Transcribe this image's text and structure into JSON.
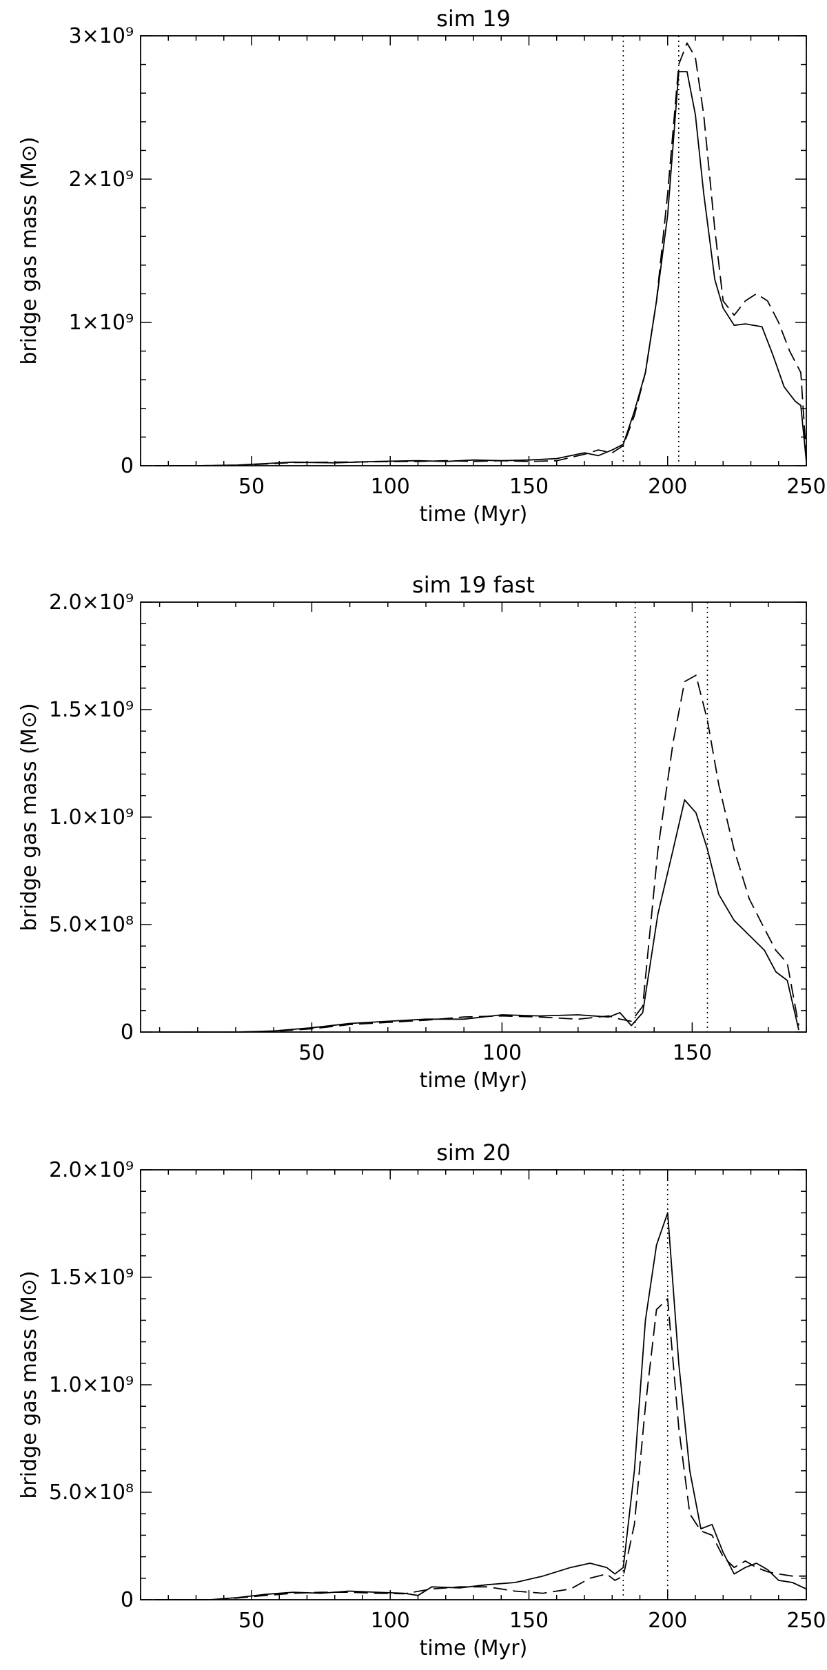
{
  "chart_data": [
    {
      "type": "line",
      "title": "sim 19",
      "xlabel": "time (Myr)",
      "ylabel": "bridge gas mass (M⊙)",
      "xlim": [
        10,
        250
      ],
      "ylim": [
        0,
        3000000000
      ],
      "xticks": [
        {
          "value": 50,
          "label": "50"
        },
        {
          "value": 100,
          "label": "100"
        },
        {
          "value": 150,
          "label": "150"
        },
        {
          "value": 200,
          "label": "200"
        },
        {
          "value": 250,
          "label": "250"
        }
      ],
      "yticks": [
        {
          "value": 0,
          "label": "0"
        },
        {
          "value": 1000000000,
          "label": "1×10⁹"
        },
        {
          "value": 2000000000,
          "label": "2×10⁹"
        },
        {
          "value": 3000000000,
          "label": "3×10⁹"
        }
      ],
      "vlines": [
        184,
        204
      ],
      "grid": false,
      "series": [
        {
          "style": "solid",
          "points": [
            [
              15,
              0
            ],
            [
              30,
              0
            ],
            [
              45,
              5000000
            ],
            [
              55,
              15000000
            ],
            [
              65,
              25000000
            ],
            [
              80,
              20000000
            ],
            [
              95,
              30000000
            ],
            [
              110,
              35000000
            ],
            [
              120,
              30000000
            ],
            [
              130,
              40000000
            ],
            [
              140,
              35000000
            ],
            [
              150,
              40000000
            ],
            [
              160,
              50000000
            ],
            [
              170,
              90000000
            ],
            [
              175,
              70000000
            ],
            [
              180,
              110000000
            ],
            [
              184,
              150000000
            ],
            [
              188,
              380000000
            ],
            [
              192,
              650000000
            ],
            [
              196,
              1150000000
            ],
            [
              200,
              1750000000
            ],
            [
              204,
              2750000000
            ],
            [
              207,
              2750000000
            ],
            [
              210,
              2450000000
            ],
            [
              213,
              1900000000
            ],
            [
              217,
              1300000000
            ],
            [
              220,
              1100000000
            ],
            [
              224,
              980000000
            ],
            [
              228,
              990000000
            ],
            [
              234,
              970000000
            ],
            [
              238,
              770000000
            ],
            [
              242,
              550000000
            ],
            [
              246,
              450000000
            ],
            [
              248,
              420000000
            ],
            [
              250,
              30000000
            ]
          ]
        },
        {
          "style": "dashed",
          "points": [
            [
              15,
              0
            ],
            [
              30,
              0
            ],
            [
              45,
              3000000
            ],
            [
              55,
              12000000
            ],
            [
              65,
              22000000
            ],
            [
              80,
              25000000
            ],
            [
              95,
              28000000
            ],
            [
              110,
              30000000
            ],
            [
              120,
              35000000
            ],
            [
              130,
              30000000
            ],
            [
              140,
              35000000
            ],
            [
              150,
              30000000
            ],
            [
              160,
              35000000
            ],
            [
              170,
              80000000
            ],
            [
              175,
              110000000
            ],
            [
              180,
              90000000
            ],
            [
              184,
              140000000
            ],
            [
              188,
              350000000
            ],
            [
              192,
              650000000
            ],
            [
              196,
              1150000000
            ],
            [
              200,
              1900000000
            ],
            [
              204,
              2800000000
            ],
            [
              207,
              2950000000
            ],
            [
              210,
              2850000000
            ],
            [
              213,
              2450000000
            ],
            [
              217,
              1650000000
            ],
            [
              220,
              1150000000
            ],
            [
              224,
              1050000000
            ],
            [
              228,
              1150000000
            ],
            [
              232,
              1200000000
            ],
            [
              236,
              1150000000
            ],
            [
              240,
              1000000000
            ],
            [
              244,
              800000000
            ],
            [
              248,
              650000000
            ],
            [
              250,
              60000000
            ]
          ]
        }
      ]
    },
    {
      "type": "line",
      "title": "sim 19 fast",
      "xlabel": "time (Myr)",
      "ylabel": "bridge gas mass (M⊙)",
      "xlim": [
        5,
        180
      ],
      "ylim": [
        0,
        2000000000
      ],
      "xticks": [
        {
          "value": 50,
          "label": "50"
        },
        {
          "value": 100,
          "label": "100"
        },
        {
          "value": 150,
          "label": "150"
        }
      ],
      "yticks": [
        {
          "value": 0,
          "label": "0"
        },
        {
          "value": 500000000,
          "label": "5.0×10⁸"
        },
        {
          "value": 1000000000,
          "label": "1.0×10⁹"
        },
        {
          "value": 1500000000,
          "label": "1.5×10⁹"
        },
        {
          "value": 2000000000,
          "label": "2.0×10⁹"
        }
      ],
      "vlines": [
        135,
        154
      ],
      "grid": false,
      "series": [
        {
          "style": "solid",
          "points": [
            [
              10,
              0
            ],
            [
              30,
              0
            ],
            [
              40,
              5000000
            ],
            [
              50,
              20000000
            ],
            [
              60,
              40000000
            ],
            [
              70,
              50000000
            ],
            [
              80,
              60000000
            ],
            [
              90,
              60000000
            ],
            [
              100,
              80000000
            ],
            [
              110,
              75000000
            ],
            [
              120,
              80000000
            ],
            [
              128,
              70000000
            ],
            [
              131,
              90000000
            ],
            [
              134,
              30000000
            ],
            [
              137,
              90000000
            ],
            [
              141,
              550000000
            ],
            [
              145,
              850000000
            ],
            [
              148,
              1080000000
            ],
            [
              151,
              1020000000
            ],
            [
              154,
              850000000
            ],
            [
              157,
              640000000
            ],
            [
              161,
              520000000
            ],
            [
              165,
              450000000
            ],
            [
              169,
              380000000
            ],
            [
              172,
              280000000
            ],
            [
              175,
              240000000
            ],
            [
              178,
              10000000
            ]
          ]
        },
        {
          "style": "dashed",
          "points": [
            [
              10,
              0
            ],
            [
              30,
              0
            ],
            [
              40,
              3000000
            ],
            [
              50,
              15000000
            ],
            [
              60,
              35000000
            ],
            [
              70,
              45000000
            ],
            [
              80,
              55000000
            ],
            [
              90,
              70000000
            ],
            [
              100,
              75000000
            ],
            [
              110,
              70000000
            ],
            [
              120,
              60000000
            ],
            [
              128,
              75000000
            ],
            [
              131,
              60000000
            ],
            [
              134,
              50000000
            ],
            [
              137,
              120000000
            ],
            [
              141,
              850000000
            ],
            [
              145,
              1350000000
            ],
            [
              148,
              1630000000
            ],
            [
              151,
              1660000000
            ],
            [
              154,
              1450000000
            ],
            [
              157,
              1150000000
            ],
            [
              161,
              850000000
            ],
            [
              165,
              620000000
            ],
            [
              169,
              480000000
            ],
            [
              172,
              380000000
            ],
            [
              175,
              320000000
            ],
            [
              178,
              30000000
            ]
          ]
        }
      ]
    },
    {
      "type": "line",
      "title": "sim 20",
      "xlabel": "time (Myr)",
      "ylabel": "bridge gas mass (M⊙)",
      "xlim": [
        10,
        250
      ],
      "ylim": [
        0,
        2000000000
      ],
      "xticks": [
        {
          "value": 50,
          "label": "50"
        },
        {
          "value": 100,
          "label": "100"
        },
        {
          "value": 150,
          "label": "150"
        },
        {
          "value": 200,
          "label": "200"
        },
        {
          "value": 250,
          "label": "250"
        }
      ],
      "yticks": [
        {
          "value": 0,
          "label": "0"
        },
        {
          "value": 500000000,
          "label": "5.0×10⁸"
        },
        {
          "value": 1000000000,
          "label": "1.0×10⁹"
        },
        {
          "value": 1500000000,
          "label": "1.5×10⁹"
        },
        {
          "value": 2000000000,
          "label": "2.0×10⁹"
        }
      ],
      "vlines": [
        184,
        200
      ],
      "grid": false,
      "series": [
        {
          "style": "solid",
          "points": [
            [
              15,
              0
            ],
            [
              35,
              0
            ],
            [
              45,
              10000000
            ],
            [
              55,
              25000000
            ],
            [
              65,
              35000000
            ],
            [
              75,
              30000000
            ],
            [
              85,
              40000000
            ],
            [
              95,
              35000000
            ],
            [
              105,
              30000000
            ],
            [
              110,
              20000000
            ],
            [
              115,
              60000000
            ],
            [
              125,
              55000000
            ],
            [
              135,
              70000000
            ],
            [
              145,
              80000000
            ],
            [
              155,
              110000000
            ],
            [
              165,
              150000000
            ],
            [
              172,
              170000000
            ],
            [
              178,
              150000000
            ],
            [
              181,
              120000000
            ],
            [
              184,
              150000000
            ],
            [
              188,
              600000000
            ],
            [
              192,
              1300000000
            ],
            [
              196,
              1650000000
            ],
            [
              200,
              1800000000
            ],
            [
              204,
              1100000000
            ],
            [
              208,
              600000000
            ],
            [
              212,
              330000000
            ],
            [
              216,
              350000000
            ],
            [
              220,
              220000000
            ],
            [
              224,
              120000000
            ],
            [
              228,
              150000000
            ],
            [
              232,
              170000000
            ],
            [
              236,
              140000000
            ],
            [
              240,
              90000000
            ],
            [
              245,
              80000000
            ],
            [
              250,
              50000000
            ]
          ]
        },
        {
          "style": "dashed",
          "points": [
            [
              15,
              0
            ],
            [
              35,
              0
            ],
            [
              45,
              8000000
            ],
            [
              55,
              20000000
            ],
            [
              65,
              30000000
            ],
            [
              75,
              35000000
            ],
            [
              85,
              35000000
            ],
            [
              95,
              30000000
            ],
            [
              105,
              28000000
            ],
            [
              115,
              50000000
            ],
            [
              125,
              60000000
            ],
            [
              135,
              60000000
            ],
            [
              145,
              40000000
            ],
            [
              155,
              30000000
            ],
            [
              165,
              50000000
            ],
            [
              172,
              100000000
            ],
            [
              178,
              120000000
            ],
            [
              181,
              90000000
            ],
            [
              184,
              110000000
            ],
            [
              188,
              350000000
            ],
            [
              192,
              900000000
            ],
            [
              196,
              1350000000
            ],
            [
              200,
              1400000000
            ],
            [
              204,
              800000000
            ],
            [
              208,
              400000000
            ],
            [
              212,
              320000000
            ],
            [
              216,
              300000000
            ],
            [
              220,
              200000000
            ],
            [
              224,
              150000000
            ],
            [
              228,
              180000000
            ],
            [
              232,
              150000000
            ],
            [
              236,
              130000000
            ],
            [
              240,
              120000000
            ],
            [
              245,
              110000000
            ],
            [
              250,
              110000000
            ]
          ]
        }
      ]
    }
  ]
}
